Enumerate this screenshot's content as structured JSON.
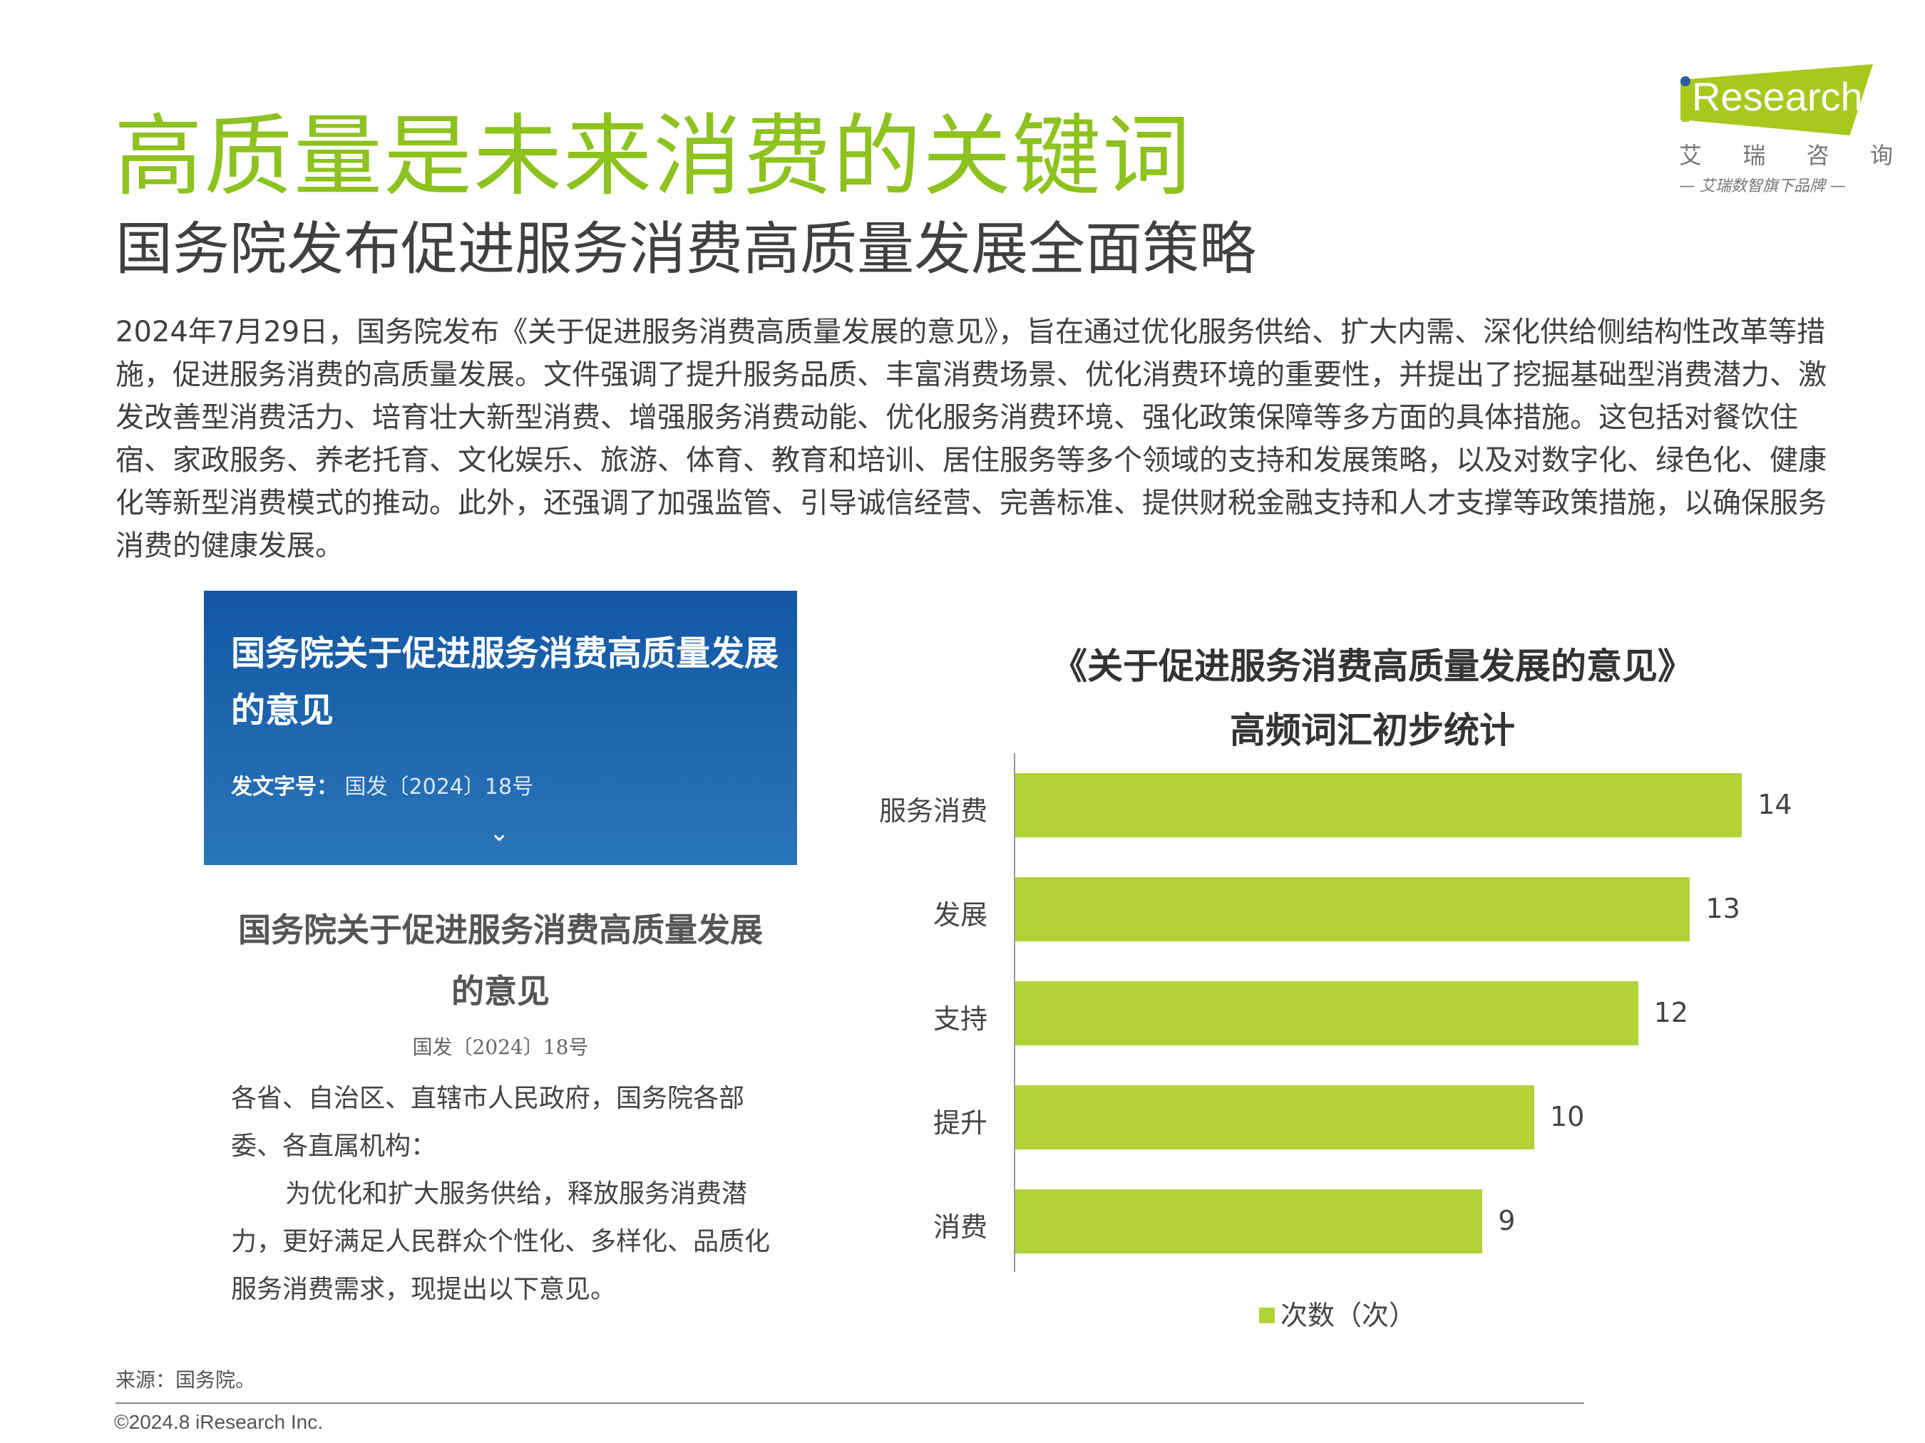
{
  "header": {
    "title": "高质量是未来消费的关键词",
    "subtitle": "国务院发布促进服务消费高质量发展全面策略"
  },
  "logo": {
    "word": "Research",
    "cn": [
      "艾",
      "瑞",
      "咨",
      "询"
    ],
    "tagline": "— 艾瑞数智旗下品牌 —",
    "colors": {
      "green": "#a8c81e",
      "blue": "#2a5fa8"
    }
  },
  "paragraph": "2024年7月29日，国务院发布《关于促进服务消费高质量发展的意见》，旨在通过优化服务供给、扩大内需、深化供给侧结构性改革等措施，促进服务消费的高质量发展。文件强调了提升服务品质、丰富消费场景、优化消费环境的重要性，并提出了挖掘基础型消费潜力、激发改善型消费活力、培育壮大新型消费、增强服务消费动能、优化服务消费环境、强化政策保障等多方面的具体措施。这包括对餐饮住宿、家政服务、养老托育、文化娱乐、旅游、体育、教育和培训、居住服务等多个领域的支持和发展策略，以及对数字化、绿色化、健康化等新型消费模式的推动。此外，还强调了加强监管、引导诚信经营、完善标准、提供财税金融支持和人才支撑等政策措施，以确保服务消费的健康发展。",
  "bluebox": {
    "title": "国务院关于促进服务消费高质量发展的意见",
    "meta_label": "发文字号：",
    "meta_value": "国发〔2024〕18号",
    "expand_icon": "chevron-down-icon"
  },
  "doc": {
    "title": "国务院关于促进服务消费高质量发展的意见",
    "number": "国发〔2024〕18号",
    "salutation": "各省、自治区、直辖市人民政府，国务院各部委、各直属机构：",
    "body": "为优化和扩大服务供给，释放服务消费潜力，更好满足人民群众个性化、多样化、品质化服务消费需求，现提出以下意见。"
  },
  "chart_data": {
    "type": "bar",
    "orientation": "horizontal",
    "title": [
      "《关于促进服务消费高质量发展的意见》",
      "高频词汇初步统计"
    ],
    "categories": [
      "服务消费",
      "发展",
      "支持",
      "提升",
      "消费"
    ],
    "series": [
      {
        "name": "次数（次）",
        "values": [
          14,
          13,
          12,
          10,
          9
        ],
        "color": "#b2d235"
      }
    ],
    "xlim": [
      0,
      14
    ],
    "grid": false,
    "legend": "bottom"
  },
  "footer": {
    "source": "来源：国务院。",
    "copyright": "©2024.8 iResearch Inc."
  }
}
